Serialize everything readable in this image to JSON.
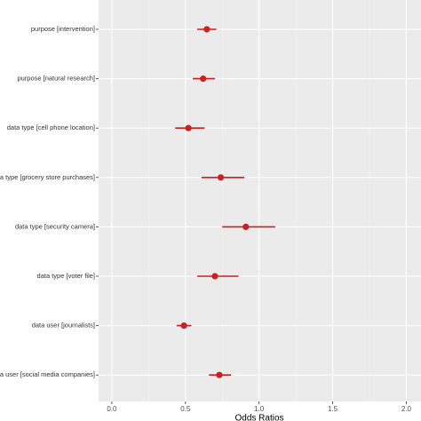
{
  "chart_data": {
    "type": "forest",
    "x_label": "Odds Ratios",
    "categories": [
      "purpose [intervention]",
      "purpose [natural research]",
      "data type [cell phone location]",
      "data type [grocery store purchases]",
      "data type [security camera]",
      "data type [voter file]",
      "data user [journalists]",
      "data user [social media companies]"
    ],
    "series": [
      {
        "color": "#cc2020",
        "values": [
          0.645,
          0.62,
          0.52,
          0.74,
          0.91,
          0.7,
          0.49,
          0.73
        ],
        "lower": [
          0.58,
          0.55,
          0.43,
          0.61,
          0.75,
          0.58,
          0.44,
          0.66
        ],
        "upper": [
          0.71,
          0.7,
          0.63,
          0.9,
          1.11,
          0.86,
          0.54,
          0.81
        ]
      }
    ],
    "xlim": [
      -0.09,
      2.1
    ],
    "xticks": [
      {
        "value": 0,
        "label": "0.0"
      },
      {
        "value": 0.5,
        "label": "0.5"
      },
      {
        "value": 1,
        "label": "1.0"
      },
      {
        "value": 1.5,
        "label": "1.5"
      },
      {
        "value": 2,
        "label": "2.0"
      }
    ],
    "grid": true
  }
}
